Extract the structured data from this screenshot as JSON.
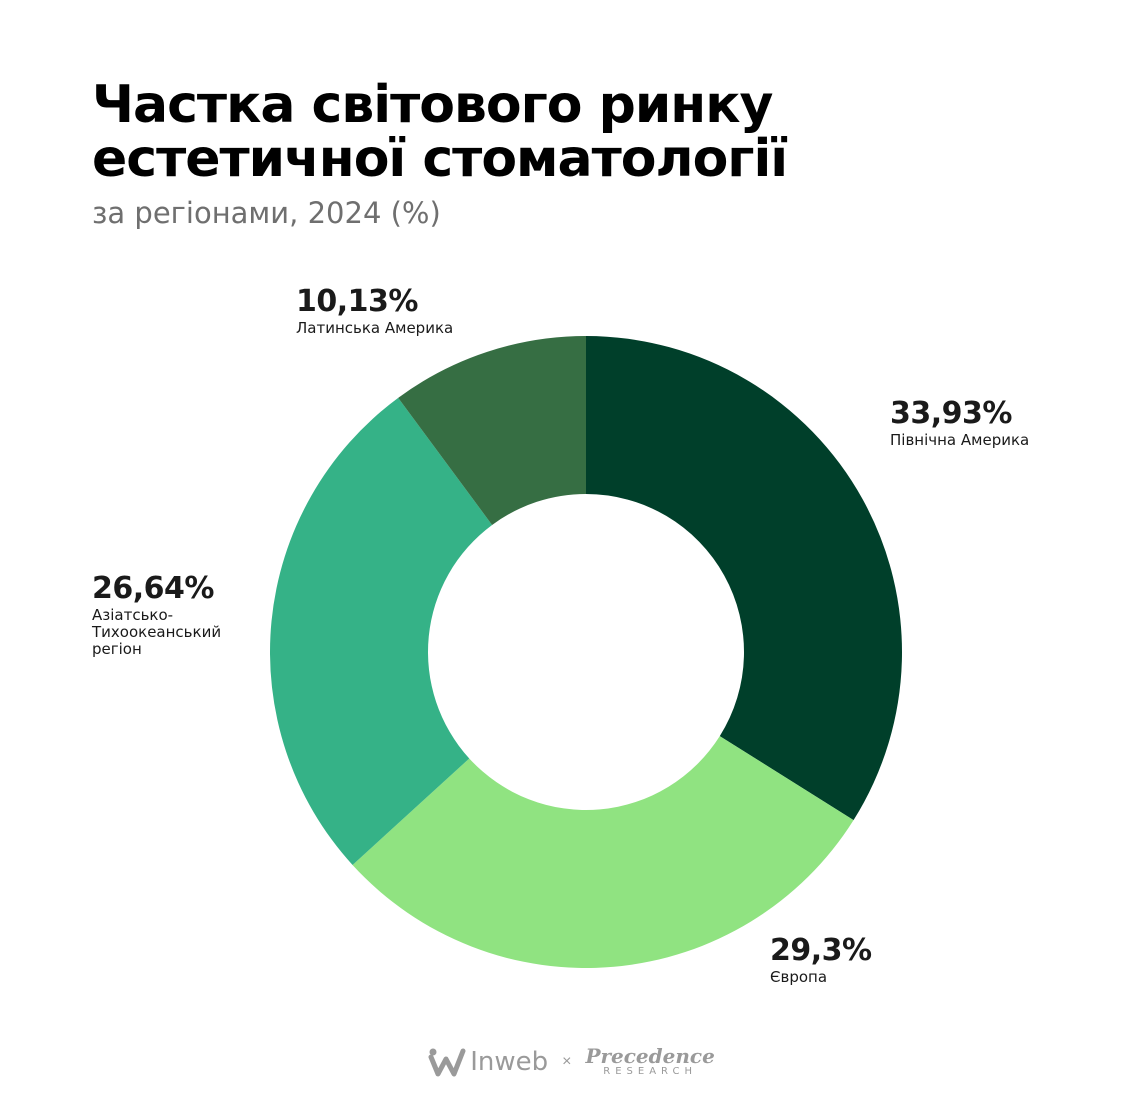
{
  "header": {
    "title": "Частка світового ринку естетичної стоматології",
    "subtitle": "за регіонами, 2024 (%)"
  },
  "chart_data": {
    "type": "pie",
    "donut": true,
    "title": "Частка світового ринку естетичної стоматології",
    "subtitle": "за регіонами, 2024 (%)",
    "categories": [
      "Північна Америка",
      "Європа",
      "Азіатсько-Тихоокеанський регіон",
      "Латинська Америка"
    ],
    "values": [
      33.93,
      29.3,
      26.64,
      10.13
    ],
    "labels": [
      "33,93%",
      "29,3%",
      "26,64%",
      "10,13%"
    ],
    "colors": [
      "#003F2A",
      "#90E381",
      "#35B287",
      "#366E43"
    ],
    "legend": "none"
  },
  "labels": {
    "north_america": {
      "pct": "33,93%",
      "name": "Північна Америка"
    },
    "europe": {
      "pct": "29,3%",
      "name": "Європа"
    },
    "asia_pacific": {
      "pct": "26,64%",
      "name": "Азіатсько-Тихоокеанський регіон"
    },
    "latin_america": {
      "pct": "10,13%",
      "name": "Латинська Америка"
    }
  },
  "footer": {
    "inweb": "Inweb",
    "separator": "×",
    "precedence_top": "Precedence",
    "precedence_bottom": "RESEARCH",
    "icons": [
      "inweb-logo-icon"
    ]
  }
}
